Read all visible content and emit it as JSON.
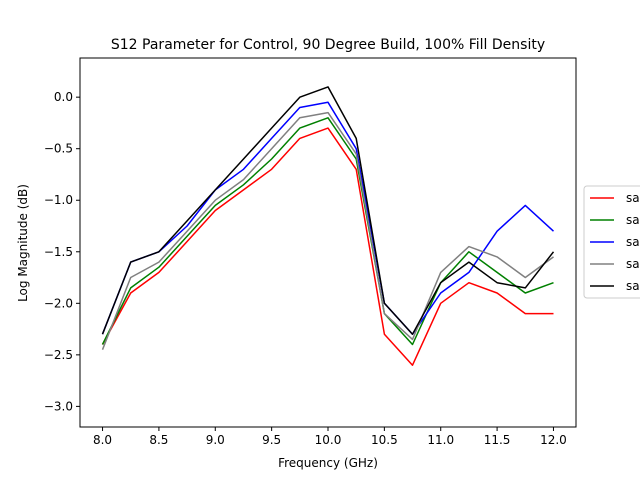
{
  "chart_data": {
    "type": "line",
    "title": "S12 Parameter for Control, 90 Degree Build, 100% Fill Density",
    "xlabel": "Frequency (GHz)",
    "ylabel": "Log Magnitude (dB)",
    "xlim": [
      7.8,
      12.2
    ],
    "ylim": [
      -3.2,
      0.38
    ],
    "xticks": [
      8.0,
      8.5,
      9.0,
      9.5,
      10.0,
      10.5,
      11.0,
      11.5,
      12.0
    ],
    "xtick_labels": [
      "8.0",
      "8.5",
      "9.0",
      "9.5",
      "10.0",
      "10.5",
      "11.0",
      "11.5",
      "12.0"
    ],
    "yticks": [
      0.0,
      -0.5,
      -1.0,
      -1.5,
      -2.0,
      -2.5,
      -3.0
    ],
    "ytick_labels": [
      "0.0",
      "−0.5",
      "−1.0",
      "−1.5",
      "−2.0",
      "−2.5",
      "−3.0"
    ],
    "grid": false,
    "legend": {
      "placement": "right-outside"
    },
    "x": [
      8.0,
      8.25,
      8.5,
      8.75,
      9.0,
      9.25,
      9.5,
      9.75,
      10.0,
      10.25,
      10.5,
      10.75,
      11.0,
      11.25,
      11.5,
      11.75,
      12.0
    ],
    "series": [
      {
        "name": "sa",
        "color": "#ff0000",
        "values": [
          -2.4,
          -1.9,
          -1.7,
          -1.4,
          -1.1,
          -0.9,
          -0.7,
          -0.4,
          -0.3,
          -0.7,
          -2.3,
          -2.6,
          -2.0,
          -1.8,
          -1.9,
          -2.1,
          -2.1
        ]
      },
      {
        "name": "sa",
        "color": "#008000",
        "values": [
          -2.4,
          -1.85,
          -1.65,
          -1.35,
          -1.05,
          -0.85,
          -0.6,
          -0.3,
          -0.2,
          -0.6,
          -2.1,
          -2.4,
          -1.8,
          -1.5,
          -1.7,
          -1.9,
          -1.8
        ]
      },
      {
        "name": "sa",
        "color": "#0000ff",
        "values": [
          -2.3,
          -1.6,
          -1.5,
          -1.25,
          -0.9,
          -0.7,
          -0.4,
          -0.1,
          -0.05,
          -0.5,
          -2.0,
          -2.3,
          -1.9,
          -1.7,
          -1.3,
          -1.05,
          -1.3
        ]
      },
      {
        "name": "sa",
        "color": "#808080",
        "values": [
          -2.45,
          -1.75,
          -1.6,
          -1.3,
          -1.0,
          -0.8,
          -0.5,
          -0.2,
          -0.15,
          -0.55,
          -2.1,
          -2.35,
          -1.7,
          -1.45,
          -1.55,
          -1.75,
          -1.55
        ]
      },
      {
        "name": "sa",
        "color": "#000000",
        "values": [
          -2.3,
          -1.6,
          -1.5,
          -1.2,
          -0.9,
          -0.6,
          -0.3,
          0.0,
          0.1,
          -0.4,
          -2.0,
          -2.3,
          -1.8,
          -1.6,
          -1.8,
          -1.85,
          -1.5
        ]
      }
    ]
  }
}
